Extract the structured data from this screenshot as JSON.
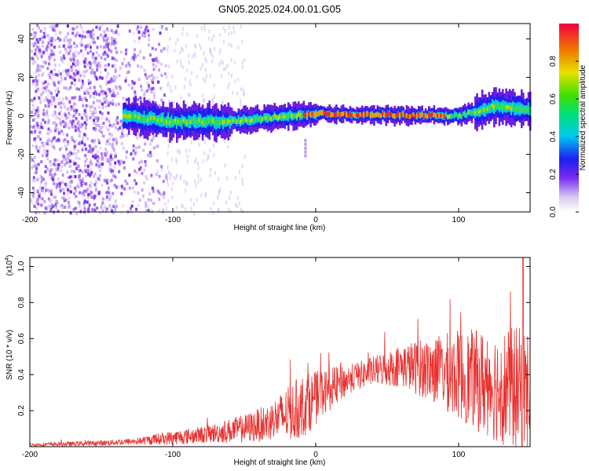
{
  "title": "GN05.2025.024.00.01.G05",
  "chart_data": [
    {
      "type": "heatmap",
      "name": "spectrogram",
      "xlabel": "Height of straight line (km)",
      "ylabel": "Frequency (Hz)",
      "xlim": [
        -200,
        150
      ],
      "ylim": [
        -50,
        48
      ],
      "xticks": [
        -200,
        -100,
        0,
        100
      ],
      "yticks": [
        40,
        20,
        0,
        -20,
        -40
      ],
      "colorbar": {
        "label": "Normalized spectral amplitude",
        "range": [
          0,
          1
        ],
        "ticks": [
          "0.0",
          "0.2",
          "0.4",
          "0.6",
          "0.8"
        ]
      },
      "description_points": {
        "noise_band_x_range": [
          -200,
          -105
        ],
        "signal_center_freq": [
          {
            "x": -135,
            "f": 0
          },
          {
            "x": -100,
            "f": -3
          },
          {
            "x": -60,
            "f": -3
          },
          {
            "x": -20,
            "f": 0
          },
          {
            "x": 0,
            "f": 1
          },
          {
            "x": 100,
            "f": 0
          },
          {
            "x": 125,
            "f": 5
          },
          {
            "x": 150,
            "f": 3
          }
        ],
        "artifact": {
          "x": -8,
          "f_range": [
            -20,
            -12
          ]
        }
      }
    },
    {
      "type": "line",
      "name": "snr",
      "xlabel": "Height of straight line (km)",
      "ylabel": "SNR (10 * v/v)",
      "scale_label": "(x10",
      "scale_exp": "4",
      "scale_close": ")",
      "xlim": [
        -200,
        150
      ],
      "ylim": [
        0,
        1.05
      ],
      "xticks": [
        -200,
        -100,
        0,
        100
      ],
      "yticks": [
        "0.2",
        "0.4",
        "0.6",
        "0.8",
        "1.0"
      ],
      "color": "#e8302e",
      "envelope": {
        "x": [
          -200,
          -150,
          -125,
          -100,
          -75,
          -50,
          -35,
          -20,
          -10,
          0,
          10,
          25,
          40,
          60,
          80,
          100,
          120,
          140,
          150
        ],
        "base": [
          0.01,
          0.02,
          0.03,
          0.05,
          0.07,
          0.1,
          0.13,
          0.18,
          0.22,
          0.27,
          0.32,
          0.38,
          0.42,
          0.45,
          0.43,
          0.4,
          0.35,
          0.32,
          0.3
        ],
        "spread": [
          0.01,
          0.015,
          0.02,
          0.04,
          0.05,
          0.08,
          0.1,
          0.15,
          0.18,
          0.15,
          0.12,
          0.08,
          0.08,
          0.12,
          0.18,
          0.25,
          0.3,
          0.35,
          0.35
        ]
      },
      "peak": {
        "x": 145,
        "y": 1.05
      }
    }
  ]
}
